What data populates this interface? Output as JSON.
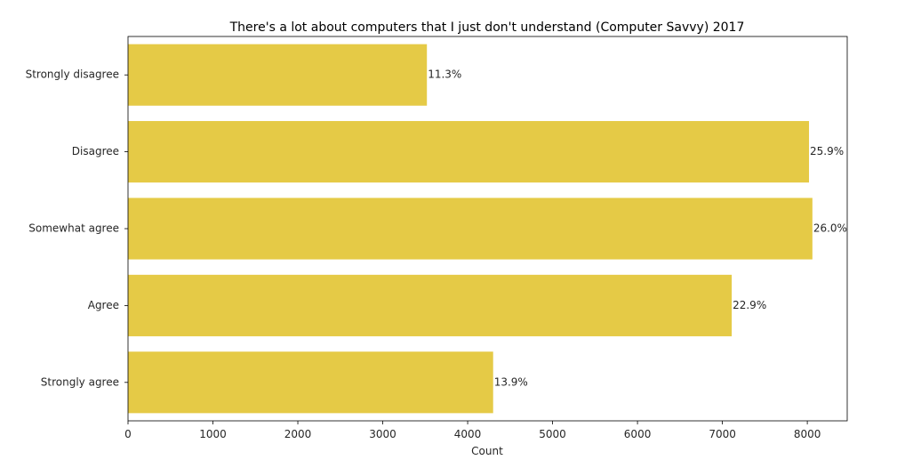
{
  "chart_data": {
    "type": "bar",
    "orientation": "horizontal",
    "title": "There's a lot about computers that I just don't understand (Computer Savvy) 2017",
    "xlabel": "Count",
    "ylabel": "",
    "categories": [
      "Strongly disagree",
      "Disagree",
      "Somewhat agree",
      "Agree",
      "Strongly agree"
    ],
    "values": [
      3520,
      8020,
      8060,
      7110,
      4300
    ],
    "data_labels": [
      "11.3%",
      "25.9%",
      "26.0%",
      "22.9%",
      "13.9%"
    ],
    "xlim": [
      0,
      8470
    ],
    "xticks": [
      0,
      1000,
      2000,
      3000,
      4000,
      5000,
      6000,
      7000,
      8000
    ],
    "xtick_labels": [
      "0",
      "1000",
      "2000",
      "3000",
      "4000",
      "5000",
      "6000",
      "7000",
      "8000"
    ],
    "bar_color": "#e5ca46",
    "grid": false,
    "legend": false
  }
}
